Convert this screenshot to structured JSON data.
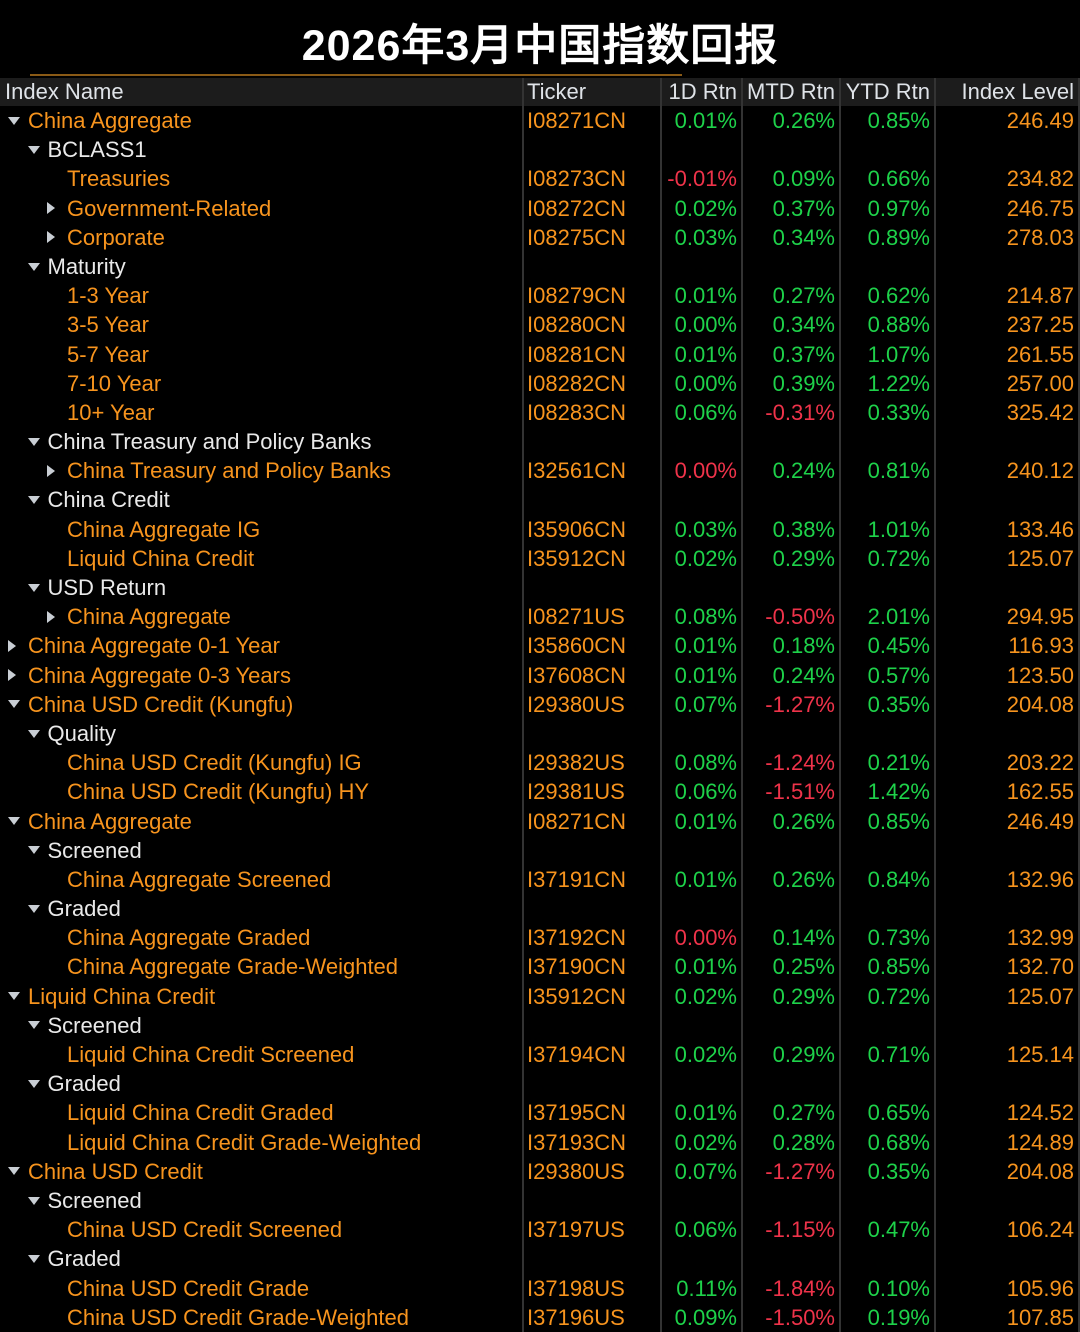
{
  "title": "2026年3月中国指数回报",
  "colors": {
    "background": "#000000",
    "header_bg": "#1c1c1c",
    "header_text": "#dfe3e8",
    "orange": "#f7941e",
    "green": "#1ed24a",
    "red": "#ef334a",
    "group_white": "#e9e9e9",
    "arrow_gray": "#c9ced4",
    "separator": "#333333",
    "accent_line": "#8a5a16"
  },
  "table": {
    "headers": [
      "Index Name",
      "Ticker",
      "1D Rtn",
      "MTD Rtn",
      "YTD Rtn",
      "Index Level"
    ],
    "rows": [
      {
        "name": "China Aggregate",
        "indent": 0,
        "arrow": "down",
        "group": false,
        "ticker": "I08271CN",
        "d1": "0.01%",
        "d1c": "green",
        "mtd": "0.26%",
        "mtdc": "green",
        "ytd": "0.85%",
        "ytdc": "green",
        "level": "246.49"
      },
      {
        "name": "BCLASS1",
        "indent": 1,
        "arrow": "down",
        "group": true,
        "ticker": "",
        "d1": "",
        "d1c": "green",
        "mtd": "",
        "mtdc": "green",
        "ytd": "",
        "ytdc": "green",
        "level": ""
      },
      {
        "name": "Treasuries",
        "indent": 2,
        "arrow": null,
        "group": false,
        "ticker": "I08273CN",
        "d1": "-0.01%",
        "d1c": "red",
        "mtd": "0.09%",
        "mtdc": "green",
        "ytd": "0.66%",
        "ytdc": "green",
        "level": "234.82"
      },
      {
        "name": "Government-Related",
        "indent": 2,
        "arrow": "right",
        "group": false,
        "ticker": "I08272CN",
        "d1": "0.02%",
        "d1c": "green",
        "mtd": "0.37%",
        "mtdc": "green",
        "ytd": "0.97%",
        "ytdc": "green",
        "level": "246.75"
      },
      {
        "name": "Corporate",
        "indent": 2,
        "arrow": "right",
        "group": false,
        "ticker": "I08275CN",
        "d1": "0.03%",
        "d1c": "green",
        "mtd": "0.34%",
        "mtdc": "green",
        "ytd": "0.89%",
        "ytdc": "green",
        "level": "278.03"
      },
      {
        "name": "Maturity",
        "indent": 1,
        "arrow": "down",
        "group": true,
        "ticker": "",
        "d1": "",
        "d1c": "green",
        "mtd": "",
        "mtdc": "green",
        "ytd": "",
        "ytdc": "green",
        "level": ""
      },
      {
        "name": "1-3 Year",
        "indent": 2,
        "arrow": null,
        "group": false,
        "ticker": "I08279CN",
        "d1": "0.01%",
        "d1c": "green",
        "mtd": "0.27%",
        "mtdc": "green",
        "ytd": "0.62%",
        "ytdc": "green",
        "level": "214.87"
      },
      {
        "name": "3-5 Year",
        "indent": 2,
        "arrow": null,
        "group": false,
        "ticker": "I08280CN",
        "d1": "0.00%",
        "d1c": "green",
        "mtd": "0.34%",
        "mtdc": "green",
        "ytd": "0.88%",
        "ytdc": "green",
        "level": "237.25"
      },
      {
        "name": "5-7 Year",
        "indent": 2,
        "arrow": null,
        "group": false,
        "ticker": "I08281CN",
        "d1": "0.01%",
        "d1c": "green",
        "mtd": "0.37%",
        "mtdc": "green",
        "ytd": "1.07%",
        "ytdc": "green",
        "level": "261.55"
      },
      {
        "name": "7-10 Year",
        "indent": 2,
        "arrow": null,
        "group": false,
        "ticker": "I08282CN",
        "d1": "0.00%",
        "d1c": "green",
        "mtd": "0.39%",
        "mtdc": "green",
        "ytd": "1.22%",
        "ytdc": "green",
        "level": "257.00"
      },
      {
        "name": "10+ Year",
        "indent": 2,
        "arrow": null,
        "group": false,
        "ticker": "I08283CN",
        "d1": "0.06%",
        "d1c": "green",
        "mtd": "-0.31%",
        "mtdc": "red",
        "ytd": "0.33%",
        "ytdc": "green",
        "level": "325.42"
      },
      {
        "name": "China Treasury and Policy Banks",
        "indent": 1,
        "arrow": "down",
        "group": true,
        "ticker": "",
        "d1": "",
        "d1c": "green",
        "mtd": "",
        "mtdc": "green",
        "ytd": "",
        "ytdc": "green",
        "level": ""
      },
      {
        "name": "China Treasury and Policy Banks",
        "indent": 2,
        "arrow": "right",
        "group": false,
        "ticker": "I32561CN",
        "d1": "0.00%",
        "d1c": "red",
        "mtd": "0.24%",
        "mtdc": "green",
        "ytd": "0.81%",
        "ytdc": "green",
        "level": "240.12"
      },
      {
        "name": "China Credit",
        "indent": 1,
        "arrow": "down",
        "group": true,
        "ticker": "",
        "d1": "",
        "d1c": "green",
        "mtd": "",
        "mtdc": "green",
        "ytd": "",
        "ytdc": "green",
        "level": ""
      },
      {
        "name": "China Aggregate IG",
        "indent": 2,
        "arrow": null,
        "group": false,
        "ticker": "I35906CN",
        "d1": "0.03%",
        "d1c": "green",
        "mtd": "0.38%",
        "mtdc": "green",
        "ytd": "1.01%",
        "ytdc": "green",
        "level": "133.46"
      },
      {
        "name": "Liquid China Credit",
        "indent": 2,
        "arrow": null,
        "group": false,
        "ticker": "I35912CN",
        "d1": "0.02%",
        "d1c": "green",
        "mtd": "0.29%",
        "mtdc": "green",
        "ytd": "0.72%",
        "ytdc": "green",
        "level": "125.07"
      },
      {
        "name": "USD Return",
        "indent": 1,
        "arrow": "down",
        "group": true,
        "ticker": "",
        "d1": "",
        "d1c": "green",
        "mtd": "",
        "mtdc": "green",
        "ytd": "",
        "ytdc": "green",
        "level": ""
      },
      {
        "name": "China Aggregate",
        "indent": 2,
        "arrow": "right",
        "group": false,
        "ticker": "I08271US",
        "d1": "0.08%",
        "d1c": "green",
        "mtd": "-0.50%",
        "mtdc": "red",
        "ytd": "2.01%",
        "ytdc": "green",
        "level": "294.95"
      },
      {
        "name": "China Aggregate 0-1 Year",
        "indent": 0,
        "arrow": "right",
        "group": false,
        "ticker": "I35860CN",
        "d1": "0.01%",
        "d1c": "green",
        "mtd": "0.18%",
        "mtdc": "green",
        "ytd": "0.45%",
        "ytdc": "green",
        "level": "116.93"
      },
      {
        "name": "China Aggregate 0-3 Years",
        "indent": 0,
        "arrow": "right",
        "group": false,
        "ticker": "I37608CN",
        "d1": "0.01%",
        "d1c": "green",
        "mtd": "0.24%",
        "mtdc": "green",
        "ytd": "0.57%",
        "ytdc": "green",
        "level": "123.50"
      },
      {
        "name": "China USD Credit (Kungfu)",
        "indent": 0,
        "arrow": "down",
        "group": false,
        "ticker": "I29380US",
        "d1": "0.07%",
        "d1c": "green",
        "mtd": "-1.27%",
        "mtdc": "red",
        "ytd": "0.35%",
        "ytdc": "green",
        "level": "204.08"
      },
      {
        "name": "Quality",
        "indent": 1,
        "arrow": "down",
        "group": true,
        "ticker": "",
        "d1": "",
        "d1c": "green",
        "mtd": "",
        "mtdc": "green",
        "ytd": "",
        "ytdc": "green",
        "level": ""
      },
      {
        "name": "China USD Credit (Kungfu) IG",
        "indent": 2,
        "arrow": null,
        "group": false,
        "ticker": "I29382US",
        "d1": "0.08%",
        "d1c": "green",
        "mtd": "-1.24%",
        "mtdc": "red",
        "ytd": "0.21%",
        "ytdc": "green",
        "level": "203.22"
      },
      {
        "name": "China USD Credit (Kungfu) HY",
        "indent": 2,
        "arrow": null,
        "group": false,
        "ticker": "I29381US",
        "d1": "0.06%",
        "d1c": "green",
        "mtd": "-1.51%",
        "mtdc": "red",
        "ytd": "1.42%",
        "ytdc": "green",
        "level": "162.55"
      },
      {
        "name": "China Aggregate",
        "indent": 0,
        "arrow": "down",
        "group": false,
        "ticker": "I08271CN",
        "d1": "0.01%",
        "d1c": "green",
        "mtd": "0.26%",
        "mtdc": "green",
        "ytd": "0.85%",
        "ytdc": "green",
        "level": "246.49"
      },
      {
        "name": "Screened",
        "indent": 1,
        "arrow": "down",
        "group": true,
        "ticker": "",
        "d1": "",
        "d1c": "green",
        "mtd": "",
        "mtdc": "green",
        "ytd": "",
        "ytdc": "green",
        "level": ""
      },
      {
        "name": "China Aggregate Screened",
        "indent": 2,
        "arrow": null,
        "group": false,
        "ticker": "I37191CN",
        "d1": "0.01%",
        "d1c": "green",
        "mtd": "0.26%",
        "mtdc": "green",
        "ytd": "0.84%",
        "ytdc": "green",
        "level": "132.96"
      },
      {
        "name": "Graded",
        "indent": 1,
        "arrow": "down",
        "group": true,
        "ticker": "",
        "d1": "",
        "d1c": "green",
        "mtd": "",
        "mtdc": "green",
        "ytd": "",
        "ytdc": "green",
        "level": ""
      },
      {
        "name": "China Aggregate Graded",
        "indent": 2,
        "arrow": null,
        "group": false,
        "ticker": "I37192CN",
        "d1": "0.00%",
        "d1c": "red",
        "mtd": "0.14%",
        "mtdc": "green",
        "ytd": "0.73%",
        "ytdc": "green",
        "level": "132.99"
      },
      {
        "name": "China Aggregate Grade-Weighted",
        "indent": 2,
        "arrow": null,
        "group": false,
        "ticker": "I37190CN",
        "d1": "0.01%",
        "d1c": "green",
        "mtd": "0.25%",
        "mtdc": "green",
        "ytd": "0.85%",
        "ytdc": "green",
        "level": "132.70"
      },
      {
        "name": "Liquid China Credit",
        "indent": 0,
        "arrow": "down",
        "group": false,
        "ticker": "I35912CN",
        "d1": "0.02%",
        "d1c": "green",
        "mtd": "0.29%",
        "mtdc": "green",
        "ytd": "0.72%",
        "ytdc": "green",
        "level": "125.07"
      },
      {
        "name": "Screened",
        "indent": 1,
        "arrow": "down",
        "group": true,
        "ticker": "",
        "d1": "",
        "d1c": "green",
        "mtd": "",
        "mtdc": "green",
        "ytd": "",
        "ytdc": "green",
        "level": ""
      },
      {
        "name": "Liquid China Credit Screened",
        "indent": 2,
        "arrow": null,
        "group": false,
        "ticker": "I37194CN",
        "d1": "0.02%",
        "d1c": "green",
        "mtd": "0.29%",
        "mtdc": "green",
        "ytd": "0.71%",
        "ytdc": "green",
        "level": "125.14"
      },
      {
        "name": "Graded",
        "indent": 1,
        "arrow": "down",
        "group": true,
        "ticker": "",
        "d1": "",
        "d1c": "green",
        "mtd": "",
        "mtdc": "green",
        "ytd": "",
        "ytdc": "green",
        "level": ""
      },
      {
        "name": "Liquid China Credit Graded",
        "indent": 2,
        "arrow": null,
        "group": false,
        "ticker": "I37195CN",
        "d1": "0.01%",
        "d1c": "green",
        "mtd": "0.27%",
        "mtdc": "green",
        "ytd": "0.65%",
        "ytdc": "green",
        "level": "124.52"
      },
      {
        "name": "Liquid China Credit Grade-Weighted",
        "indent": 2,
        "arrow": null,
        "group": false,
        "ticker": "I37193CN",
        "d1": "0.02%",
        "d1c": "green",
        "mtd": "0.28%",
        "mtdc": "green",
        "ytd": "0.68%",
        "ytdc": "green",
        "level": "124.89"
      },
      {
        "name": "China USD Credit",
        "indent": 0,
        "arrow": "down",
        "group": false,
        "ticker": "I29380US",
        "d1": "0.07%",
        "d1c": "green",
        "mtd": "-1.27%",
        "mtdc": "red",
        "ytd": "0.35%",
        "ytdc": "green",
        "level": "204.08"
      },
      {
        "name": "Screened",
        "indent": 1,
        "arrow": "down",
        "group": true,
        "ticker": "",
        "d1": "",
        "d1c": "green",
        "mtd": "",
        "mtdc": "green",
        "ytd": "",
        "ytdc": "green",
        "level": ""
      },
      {
        "name": "China USD Credit Screened",
        "indent": 2,
        "arrow": null,
        "group": false,
        "ticker": "I37197US",
        "d1": "0.06%",
        "d1c": "green",
        "mtd": "-1.15%",
        "mtdc": "red",
        "ytd": "0.47%",
        "ytdc": "green",
        "level": "106.24"
      },
      {
        "name": "Graded",
        "indent": 1,
        "arrow": "down",
        "group": true,
        "ticker": "",
        "d1": "",
        "d1c": "green",
        "mtd": "",
        "mtdc": "green",
        "ytd": "",
        "ytdc": "green",
        "level": ""
      },
      {
        "name": "China USD Credit Grade",
        "indent": 2,
        "arrow": null,
        "group": false,
        "ticker": "I37198US",
        "d1": "0.11%",
        "d1c": "green",
        "mtd": "-1.84%",
        "mtdc": "red",
        "ytd": "0.10%",
        "ytdc": "green",
        "level": "105.96"
      },
      {
        "name": "China USD Credit Grade-Weighted",
        "indent": 2,
        "arrow": null,
        "group": false,
        "ticker": "I37196US",
        "d1": "0.09%",
        "d1c": "green",
        "mtd": "-1.50%",
        "mtdc": "red",
        "ytd": "0.19%",
        "ytdc": "green",
        "level": "107.85"
      }
    ]
  }
}
